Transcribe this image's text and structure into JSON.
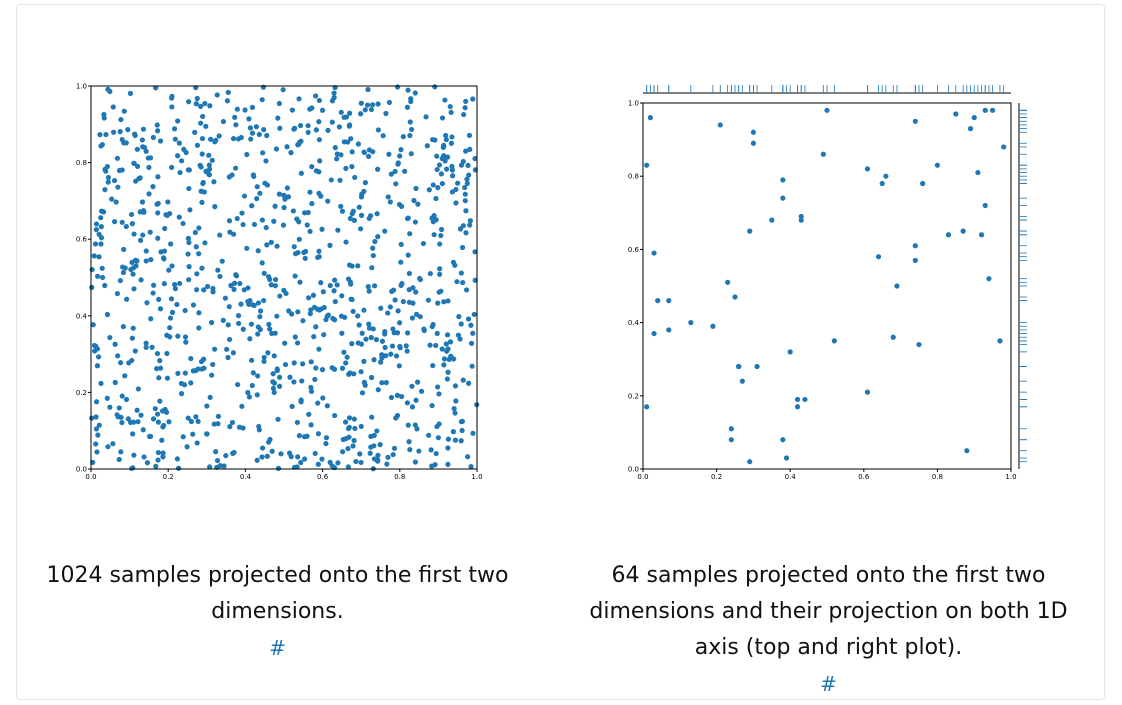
{
  "colors": {
    "point": "#1f77b4",
    "axis": "#000000",
    "link": "#1f77b4"
  },
  "figures": [
    {
      "caption": "1024 samples projected onto the first two dimensions.",
      "anchor": "#"
    },
    {
      "caption": "64 samples projected onto the first two dimensions and their projection on both 1D axis (top and right plot).",
      "anchor": "#"
    }
  ],
  "chart_data": [
    {
      "type": "scatter",
      "title": "",
      "xlabel": "",
      "ylabel": "",
      "xlim": [
        0.0,
        1.0
      ],
      "ylim": [
        0.0,
        1.0
      ],
      "xticks": [
        "0.0",
        "0.2",
        "0.4",
        "0.6",
        "0.8",
        "1.0"
      ],
      "yticks": [
        "0.0",
        "0.2",
        "0.4",
        "0.6",
        "0.8",
        "1.0"
      ],
      "n_points": 1024,
      "grid": false,
      "series": [
        {
          "points": "approximately uniform scatter of 1024 points covering [0,1]x[0,1]"
        }
      ]
    },
    {
      "type": "scatter",
      "title": "",
      "xlabel": "",
      "ylabel": "",
      "xlim": [
        0.0,
        1.0
      ],
      "ylim": [
        0.0,
        1.0
      ],
      "xticks": [
        "0.0",
        "0.2",
        "0.4",
        "0.6",
        "0.8",
        "1.0"
      ],
      "yticks": [
        "0.0",
        "0.2",
        "0.4",
        "0.6",
        "0.8",
        "1.0"
      ],
      "grid": false,
      "marginal_rugs": [
        "top",
        "right"
      ],
      "series": [
        {
          "x": [
            0.02,
            0.01,
            0.01,
            0.03,
            0.04,
            0.07,
            0.07,
            0.13,
            0.19,
            0.21,
            0.23,
            0.24,
            0.25,
            0.26,
            0.27,
            0.29,
            0.29,
            0.3,
            0.3,
            0.31,
            0.35,
            0.38,
            0.38,
            0.39,
            0.4,
            0.42,
            0.42,
            0.43,
            0.43,
            0.44,
            0.49,
            0.5,
            0.52,
            0.61,
            0.61,
            0.64,
            0.65,
            0.66,
            0.68,
            0.69,
            0.74,
            0.74,
            0.74,
            0.75,
            0.76,
            0.8,
            0.83,
            0.85,
            0.87,
            0.88,
            0.89,
            0.9,
            0.91,
            0.92,
            0.93,
            0.93,
            0.94,
            0.95,
            0.97,
            0.98,
            0.03,
            0.24,
            0.26,
            0.38
          ],
          "y": [
            0.96,
            0.83,
            0.17,
            0.59,
            0.46,
            0.46,
            0.38,
            0.4,
            0.39,
            0.94,
            0.51,
            0.11,
            0.47,
            0.28,
            0.24,
            0.65,
            0.02,
            0.89,
            0.92,
            0.28,
            0.68,
            0.79,
            0.74,
            0.03,
            0.32,
            0.17,
            0.19,
            0.68,
            0.69,
            0.19,
            0.86,
            0.98,
            0.35,
            0.82,
            0.21,
            0.58,
            0.78,
            0.8,
            0.36,
            0.5,
            0.95,
            0.57,
            0.61,
            0.34,
            0.78,
            0.83,
            0.64,
            0.97,
            0.65,
            0.05,
            0.93,
            0.96,
            0.81,
            0.64,
            0.72,
            0.98,
            0.52,
            0.98,
            0.35,
            0.88,
            0.37,
            0.08,
            0.28,
            0.08
          ]
        }
      ]
    }
  ]
}
